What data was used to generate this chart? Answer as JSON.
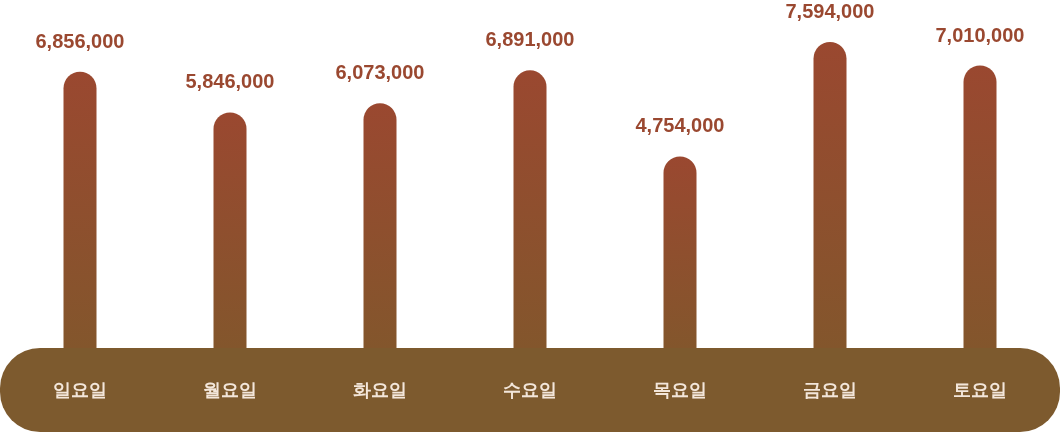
{
  "chart_data": {
    "type": "bar",
    "categories": [
      "일요일",
      "월요일",
      "화요일",
      "수요일",
      "목요일",
      "금요일",
      "토요일"
    ],
    "values": [
      6856000,
      5846000,
      6073000,
      6891000,
      4754000,
      7594000,
      7010000
    ],
    "value_labels": [
      "6,856,000",
      "5,846,000",
      "6,073,000",
      "6,891,000",
      "4,754,000",
      "7,594,000",
      "7,010,000"
    ],
    "color": "#9a4830"
  }
}
